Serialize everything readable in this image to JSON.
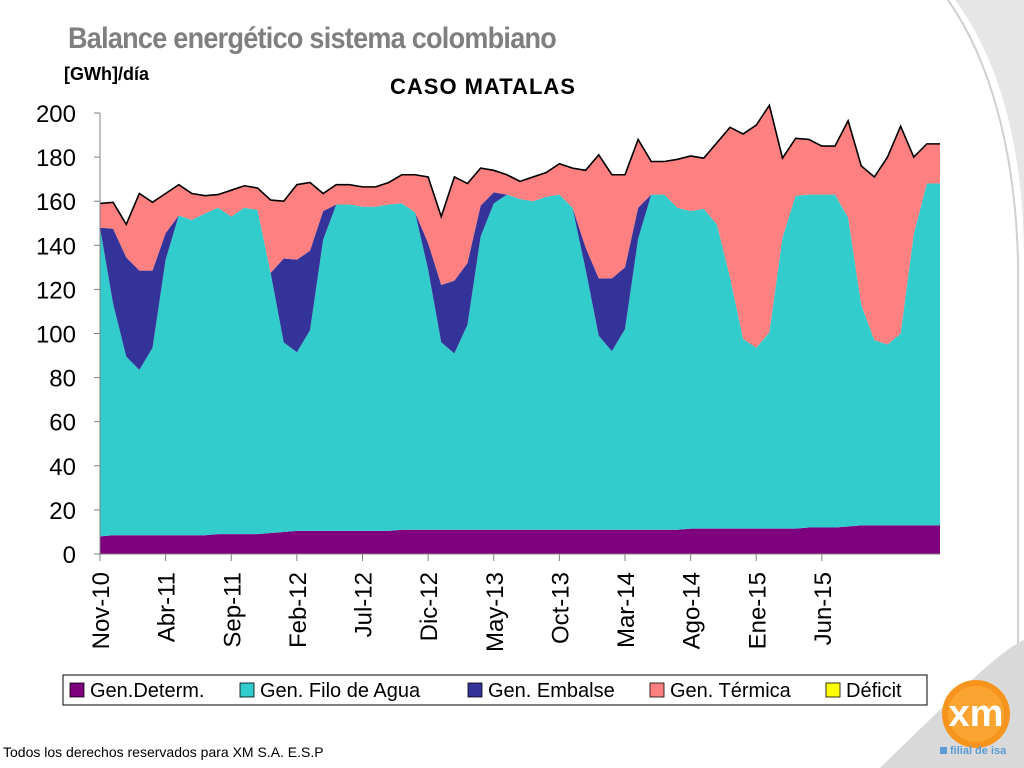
{
  "slide": {
    "title": "Balance energético sistema colombiano",
    "footer": "Todos los derechos reservados para XM S.A. E.S.P",
    "logo": {
      "text": "xm",
      "tagline": "filial de isa"
    }
  },
  "chart_data": {
    "type": "area",
    "stacked": true,
    "title": "CASO MATALAS",
    "ylabel": "[GWh]/día",
    "xlabel": "",
    "ylim": [
      0,
      200
    ],
    "yticks": [
      0,
      20,
      40,
      60,
      80,
      100,
      120,
      140,
      160,
      180,
      200
    ],
    "x_tick_labels": [
      "Nov-10",
      "Abr-11",
      "Sep-11",
      "Feb-12",
      "Jul-12",
      "Dic-12",
      "May-13",
      "Oct-13",
      "Mar-14",
      "Ago-14",
      "Ene-15",
      "Jun-15"
    ],
    "x_start": "Nov-10",
    "grid": false,
    "legend_position": "bottom",
    "series": [
      {
        "name": "Gen.Determ.",
        "color": "#7f007f",
        "values": [
          8,
          8.5,
          8.5,
          8.5,
          8.5,
          8.5,
          8.5,
          8.5,
          8.5,
          9,
          9,
          9,
          9,
          9.5,
          10,
          10.5,
          10.5,
          10.5,
          10.5,
          10.5,
          10.5,
          10.5,
          10.5,
          11,
          11,
          11,
          11,
          11,
          11,
          11,
          11,
          11,
          11,
          11,
          11,
          11,
          11,
          11,
          11,
          11,
          11,
          11,
          11,
          11,
          11,
          11.5,
          11.5,
          11.5,
          11.5,
          11.5,
          11.5,
          11.5,
          11.5,
          11.5,
          12,
          12,
          12,
          12.5,
          13,
          13,
          13,
          13,
          13,
          13,
          13
        ]
      },
      {
        "name": "Gen. Filo de Agua",
        "color": "#33cccc",
        "values": [
          140,
          105,
          81,
          75,
          85,
          125,
          145,
          143,
          146,
          148,
          144,
          148,
          147,
          118,
          86,
          81,
          91,
          132,
          148,
          148,
          147,
          147,
          148,
          148,
          144,
          118,
          85,
          80,
          93,
          133,
          148,
          152,
          150,
          149,
          151,
          152,
          146,
          118,
          88,
          81,
          91,
          132,
          152,
          152,
          146,
          144,
          145,
          138,
          114,
          86,
          82,
          89,
          132,
          151,
          151,
          151,
          151,
          140,
          100,
          84,
          82,
          87,
          132,
          155,
          155,
          140,
          118
        ]
      },
      {
        "name": "Gen. Embalse",
        "color": "#333399",
        "values": [
          0,
          34,
          45,
          45,
          35,
          12,
          0,
          0,
          0,
          0,
          0,
          0,
          0,
          0,
          38,
          42,
          36,
          13,
          0,
          0,
          0,
          0,
          0,
          0,
          0,
          12,
          26,
          33,
          28,
          14,
          5,
          0,
          0,
          0,
          0,
          0,
          0,
          10,
          26,
          33,
          28,
          14,
          0,
          0,
          0,
          0,
          0,
          0,
          0,
          0,
          0,
          0,
          0,
          0,
          0,
          0,
          0,
          0,
          0,
          0,
          0,
          0,
          0,
          0,
          0,
          0,
          0
        ]
      },
      {
        "name": "Gen. Térmica",
        "color": "#ff8080",
        "values": [
          11,
          12,
          15,
          35,
          31,
          18,
          14,
          12,
          8,
          6,
          12,
          10,
          10,
          33,
          26,
          34,
          31,
          8,
          9,
          9,
          9,
          9,
          10,
          13,
          17,
          30,
          31,
          47,
          36,
          17,
          10,
          9,
          8,
          11,
          11,
          14,
          18,
          35,
          56,
          47,
          42,
          31,
          15,
          15,
          22,
          25,
          23,
          37,
          68,
          93,
          101,
          103,
          36,
          26,
          25,
          22,
          22,
          44,
          63,
          74,
          85,
          94,
          35,
          18,
          18,
          36,
          62
        ]
      },
      {
        "name": "Déficit",
        "color": "#ffff00",
        "values": [
          0,
          0,
          0,
          0,
          0,
          0,
          0,
          0,
          0,
          0,
          0,
          0,
          0,
          0,
          0,
          0,
          0,
          0,
          0,
          0,
          0,
          0,
          0,
          0,
          0,
          0,
          0,
          0,
          0,
          0,
          0,
          0,
          0,
          0,
          0,
          0,
          0,
          0,
          0,
          0,
          0,
          0,
          0,
          0,
          0,
          0,
          0,
          0,
          0,
          0,
          0,
          0,
          0,
          0,
          0,
          0,
          0,
          0,
          0,
          0,
          0,
          0,
          0,
          0,
          0,
          0,
          0
        ]
      }
    ],
    "total_outline_color": "#000000"
  }
}
